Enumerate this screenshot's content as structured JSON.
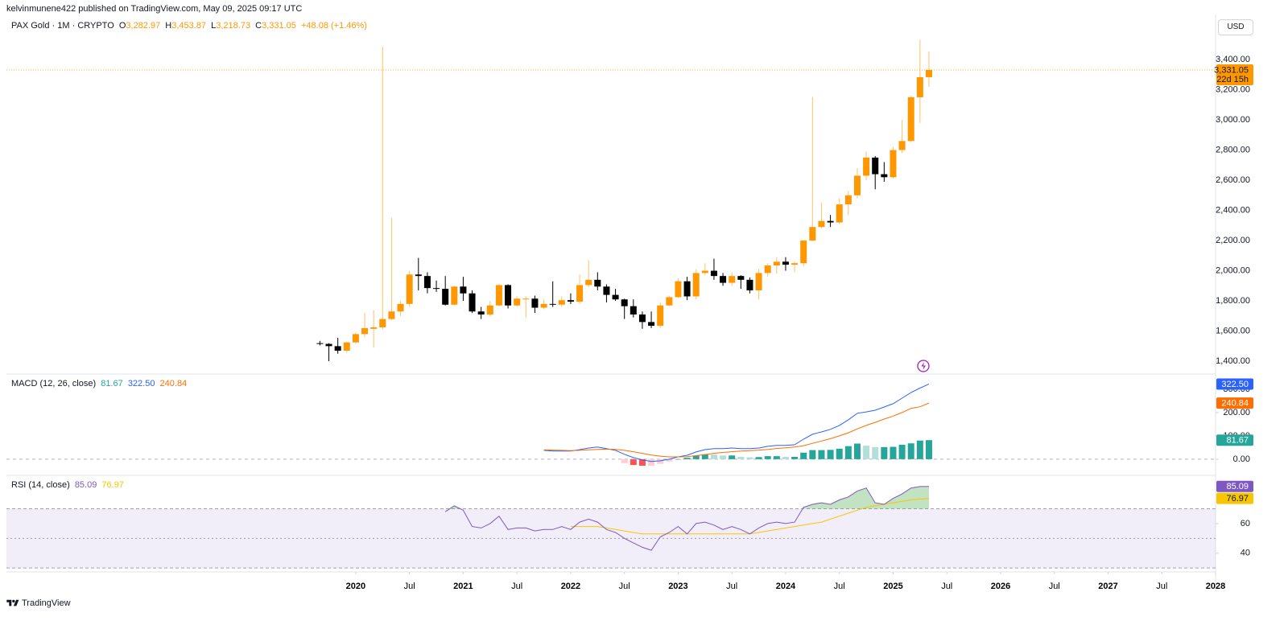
{
  "header": {
    "publisher": "kelvinmunene422 published on TradingView.com, May 09, 2025 09:17 UTC",
    "currency": "USD",
    "footer": "TradingView"
  },
  "time_axis": {
    "ticks": [
      {
        "value": "2020-01",
        "label": "2020"
      },
      {
        "value": "2020-07",
        "label": "Jul"
      },
      {
        "value": "2021-01",
        "label": "2021"
      },
      {
        "value": "2021-07",
        "label": "Jul"
      },
      {
        "value": "2022-01",
        "label": "2022"
      },
      {
        "value": "2022-07",
        "label": "Jul"
      },
      {
        "value": "2023-01",
        "label": "2023"
      },
      {
        "value": "2023-07",
        "label": "Jul"
      },
      {
        "value": "2024-01",
        "label": "2024"
      },
      {
        "value": "2024-07",
        "label": "Jul"
      },
      {
        "value": "2025-01",
        "label": "2025"
      },
      {
        "value": "2025-07",
        "label": "Jul"
      },
      {
        "value": "2026-01",
        "label": "2026"
      },
      {
        "value": "2026-07",
        "label": "Jul"
      },
      {
        "value": "2027-01",
        "label": "2027"
      },
      {
        "value": "2027-07",
        "label": "Jul"
      },
      {
        "value": "2028-01",
        "label": "2028"
      }
    ],
    "xlim": [
      "2016-10",
      "2028-01"
    ]
  },
  "chart_data": [
    {
      "type": "candlestick",
      "title": "PAX Gold · 1M · CRYPTO",
      "legend": [
        {
          "key": "O",
          "value": "3,282.97"
        },
        {
          "key": "H",
          "value": "3,453.87"
        },
        {
          "key": "L",
          "value": "3,218.73"
        },
        {
          "key": "C",
          "value": "3,331.05"
        }
      ],
      "change": "+48.08 (+1.46%)",
      "up_color": "#ff9800",
      "down_color": "#000000",
      "x": [
        "2019-09",
        "2019-10",
        "2019-11",
        "2019-12",
        "2020-01",
        "2020-02",
        "2020-03",
        "2020-04",
        "2020-05",
        "2020-06",
        "2020-07",
        "2020-08",
        "2020-09",
        "2020-10",
        "2020-11",
        "2020-12",
        "2021-01",
        "2021-02",
        "2021-03",
        "2021-04",
        "2021-05",
        "2021-06",
        "2021-07",
        "2021-08",
        "2021-09",
        "2021-10",
        "2021-11",
        "2021-12",
        "2022-01",
        "2022-02",
        "2022-03",
        "2022-04",
        "2022-05",
        "2022-06",
        "2022-07",
        "2022-08",
        "2022-09",
        "2022-10",
        "2022-11",
        "2022-12",
        "2023-01",
        "2023-02",
        "2023-03",
        "2023-04",
        "2023-05",
        "2023-06",
        "2023-07",
        "2023-08",
        "2023-09",
        "2023-10",
        "2023-11",
        "2023-12",
        "2024-01",
        "2024-02",
        "2024-03",
        "2024-04",
        "2024-05",
        "2024-06",
        "2024-07",
        "2024-08",
        "2024-09",
        "2024-10",
        "2024-11",
        "2024-12",
        "2025-01",
        "2025-02",
        "2025-03",
        "2025-04",
        "2025-05"
      ],
      "open": [
        1520,
        1515,
        1500,
        1470,
        1525,
        1580,
        1615,
        1625,
        1680,
        1730,
        1780,
        1975,
        1965,
        1885,
        1880,
        1775,
        1895,
        1850,
        1730,
        1710,
        1770,
        1905,
        1770,
        1810,
        1815,
        1755,
        1780,
        1775,
        1805,
        1795,
        1905,
        1940,
        1895,
        1840,
        1810,
        1765,
        1710,
        1660,
        1635,
        1770,
        1825,
        1930,
        1830,
        1985,
        2000,
        1965,
        1920,
        1965,
        1940,
        1870,
        1985,
        2035,
        2060,
        2040,
        2050,
        2200,
        2290,
        2330,
        2320,
        2440,
        2500,
        2630,
        2750,
        2640,
        2620,
        2800,
        2860,
        3150,
        3282.97
      ],
      "high": [
        1535,
        1520,
        1555,
        1530,
        1590,
        1720,
        1740,
        3485,
        2350,
        1800,
        2000,
        2085,
        1990,
        1935,
        1965,
        1900,
        1960,
        1870,
        1760,
        1800,
        1915,
        1910,
        1830,
        1830,
        1835,
        1810,
        1930,
        1830,
        1850,
        1975,
        2070,
        1990,
        1910,
        1880,
        1815,
        1810,
        1730,
        1730,
        1790,
        1835,
        1950,
        1960,
        2010,
        2050,
        2080,
        1985,
        1990,
        1970,
        1955,
        2010,
        2050,
        2090,
        2090,
        2060,
        2200,
        3150,
        2450,
        2370,
        2480,
        2530,
        2680,
        2790,
        2760,
        2720,
        2820,
        3000,
        3160,
        3530,
        3453.87
      ],
      "low": [
        1505,
        1400,
        1450,
        1455,
        1515,
        1560,
        1490,
        1610,
        1670,
        1700,
        1760,
        1870,
        1850,
        1860,
        1770,
        1770,
        1800,
        1720,
        1680,
        1700,
        1765,
        1750,
        1760,
        1690,
        1720,
        1745,
        1760,
        1760,
        1780,
        1780,
        1890,
        1870,
        1790,
        1800,
        1680,
        1690,
        1615,
        1620,
        1620,
        1765,
        1820,
        1805,
        1810,
        1970,
        1940,
        1900,
        1900,
        1880,
        1850,
        1810,
        1960,
        1980,
        2000,
        1990,
        2030,
        2200,
        2280,
        2290,
        2310,
        2370,
        2480,
        2600,
        2540,
        2590,
        2610,
        2780,
        2850,
        2980,
        3218.73
      ],
      "close": [
        1515,
        1500,
        1470,
        1525,
        1580,
        1620,
        1625,
        1680,
        1730,
        1780,
        1975,
        1965,
        1885,
        1880,
        1775,
        1895,
        1850,
        1730,
        1710,
        1770,
        1905,
        1770,
        1815,
        1815,
        1755,
        1780,
        1775,
        1805,
        1795,
        1905,
        1940,
        1895,
        1840,
        1810,
        1765,
        1710,
        1660,
        1635,
        1770,
        1825,
        1930,
        1830,
        1985,
        2000,
        1965,
        1920,
        1965,
        1940,
        1870,
        1985,
        2035,
        2060,
        2040,
        2050,
        2200,
        2290,
        2330,
        2320,
        2440,
        2500,
        2630,
        2750,
        2640,
        2620,
        2800,
        2860,
        3150,
        3283,
        3331.05
      ],
      "ylim": [
        1326,
        3688
      ],
      "yticks": [
        {
          "value": 1400,
          "label": "1,400.00"
        },
        {
          "value": 1600,
          "label": "1,600.00"
        },
        {
          "value": 1800,
          "label": "1,800.00"
        },
        {
          "value": 2000,
          "label": "2,000.00"
        },
        {
          "value": 2200,
          "label": "2,200.00"
        },
        {
          "value": 2400,
          "label": "2,400.00"
        },
        {
          "value": 2600,
          "label": "2,600.00"
        },
        {
          "value": 2800,
          "label": "2,800.00"
        },
        {
          "value": 3000,
          "label": "3,000.00"
        },
        {
          "value": 3200,
          "label": "3,200.00"
        },
        {
          "value": 3400,
          "label": "3,400.00"
        }
      ],
      "last_price": {
        "value": 3331.05,
        "label": "3,331.05",
        "countdown": "22d 15h"
      }
    },
    {
      "type": "macd",
      "title": "MACD (12, 26, close)",
      "x": [
        "2021-10",
        "2021-11",
        "2021-12",
        "2022-01",
        "2022-02",
        "2022-03",
        "2022-04",
        "2022-05",
        "2022-06",
        "2022-07",
        "2022-08",
        "2022-09",
        "2022-10",
        "2022-11",
        "2022-12",
        "2023-01",
        "2023-02",
        "2023-03",
        "2023-04",
        "2023-05",
        "2023-06",
        "2023-07",
        "2023-08",
        "2023-09",
        "2023-10",
        "2023-11",
        "2023-12",
        "2024-01",
        "2024-02",
        "2024-03",
        "2024-04",
        "2024-05",
        "2024-06",
        "2024-07",
        "2024-08",
        "2024-09",
        "2024-10",
        "2024-11",
        "2024-12",
        "2025-01",
        "2025-02",
        "2025-03",
        "2025-04",
        "2025-05"
      ],
      "series": [
        {
          "type": "bar",
          "colors": {
            "up_rising": "#26a69a",
            "up_falling": "#b2dfdb",
            "down_falling": "#ff5252",
            "down_rising": "#ffcdd2"
          },
          "last_label": "81.67",
          "values": [
            null,
            null,
            null,
            null,
            null,
            null,
            null,
            null,
            null,
            -17,
            -25,
            -28,
            -28,
            -20,
            -10,
            0,
            6,
            16,
            21,
            20,
            16,
            16,
            10,
            8,
            9,
            13,
            13,
            10,
            10,
            28,
            39,
            39,
            40,
            45,
            56,
            67,
            58,
            52,
            52,
            53,
            62,
            68,
            80,
            81.67
          ]
        },
        {
          "type": "line",
          "color": "#2962ff",
          "last_label": "322.50",
          "values": [
            38,
            35,
            35,
            35,
            41,
            48,
            52,
            45,
            38,
            21,
            7,
            -3,
            -10,
            -7,
            0,
            10,
            17,
            31,
            41,
            45,
            45,
            48,
            45,
            45,
            48,
            55,
            59,
            59,
            62,
            86,
            107,
            117,
            128,
            145,
            169,
            197,
            203,
            210,
            224,
            238,
            262,
            286,
            305,
            322.5
          ]
        },
        {
          "type": "line",
          "color": "#ff6d00",
          "last_label": "240.84",
          "values": [
            40,
            39,
            38,
            37,
            38,
            40,
            42,
            43,
            42,
            38,
            32,
            25,
            18,
            13,
            10,
            10,
            11,
            15,
            20,
            25,
            29,
            32,
            35,
            37,
            39,
            42,
            46,
            49,
            52,
            58,
            68,
            78,
            88,
            100,
            113,
            130,
            145,
            158,
            172,
            185,
            200,
            218,
            225,
            240.84
          ]
        }
      ],
      "ylim": [
        -66,
        362
      ],
      "yticks": [
        {
          "value": 0,
          "label": "0.00"
        },
        {
          "value": 100,
          "label": "100.00"
        },
        {
          "value": 200,
          "label": "200.00"
        },
        {
          "value": 300,
          "label": "300.00"
        }
      ]
    },
    {
      "type": "rsi",
      "title": "RSI (14, close)",
      "x": [
        "2020-11",
        "2020-12",
        "2021-01",
        "2021-02",
        "2021-03",
        "2021-04",
        "2021-05",
        "2021-06",
        "2021-07",
        "2021-08",
        "2021-09",
        "2021-10",
        "2021-11",
        "2021-12",
        "2022-01",
        "2022-02",
        "2022-03",
        "2022-04",
        "2022-05",
        "2022-06",
        "2022-07",
        "2022-08",
        "2022-09",
        "2022-10",
        "2022-11",
        "2022-12",
        "2023-01",
        "2023-02",
        "2023-03",
        "2023-04",
        "2023-05",
        "2023-06",
        "2023-07",
        "2023-08",
        "2023-09",
        "2023-10",
        "2023-11",
        "2023-12",
        "2024-01",
        "2024-02",
        "2024-03",
        "2024-04",
        "2024-05",
        "2024-06",
        "2024-07",
        "2024-08",
        "2024-09",
        "2024-10",
        "2024-11",
        "2024-12",
        "2025-01",
        "2025-02",
        "2025-03",
        "2025-04",
        "2025-05"
      ],
      "series": [
        {
          "type": "line",
          "color": "#7e57c2",
          "last_label": "85.09",
          "values": [
            68,
            72,
            69,
            58,
            57,
            60,
            65,
            56,
            57,
            57,
            55,
            56,
            56,
            58,
            56,
            61,
            63,
            61,
            56,
            54,
            50,
            47,
            44,
            42,
            51,
            54,
            58,
            53,
            60,
            61,
            59,
            56,
            58,
            56,
            53,
            57,
            60,
            61,
            60,
            61,
            71,
            73,
            74,
            73,
            76,
            78,
            82,
            84,
            74,
            73,
            77,
            80,
            84,
            85,
            85.09
          ]
        },
        {
          "type": "line",
          "color": "#f7c600",
          "last_label": "76.97",
          "values": [
            null,
            null,
            null,
            null,
            null,
            null,
            null,
            null,
            null,
            null,
            null,
            null,
            null,
            null,
            58,
            58,
            58,
            58,
            57,
            56,
            55,
            54,
            53,
            53,
            53,
            53,
            53,
            53,
            53,
            53,
            53,
            53,
            53,
            53,
            53,
            54,
            55,
            56,
            57,
            58,
            59,
            60,
            61,
            63,
            65,
            67,
            69,
            71,
            72,
            73,
            74,
            75,
            76,
            76.5,
            76.97
          ]
        }
      ],
      "ylim": [
        29,
        92
      ],
      "yticks": [
        40,
        60
      ],
      "levels": [
        30,
        50,
        70
      ],
      "band_color": "#7e57c2",
      "overbought_color": "#4caf50"
    }
  ]
}
